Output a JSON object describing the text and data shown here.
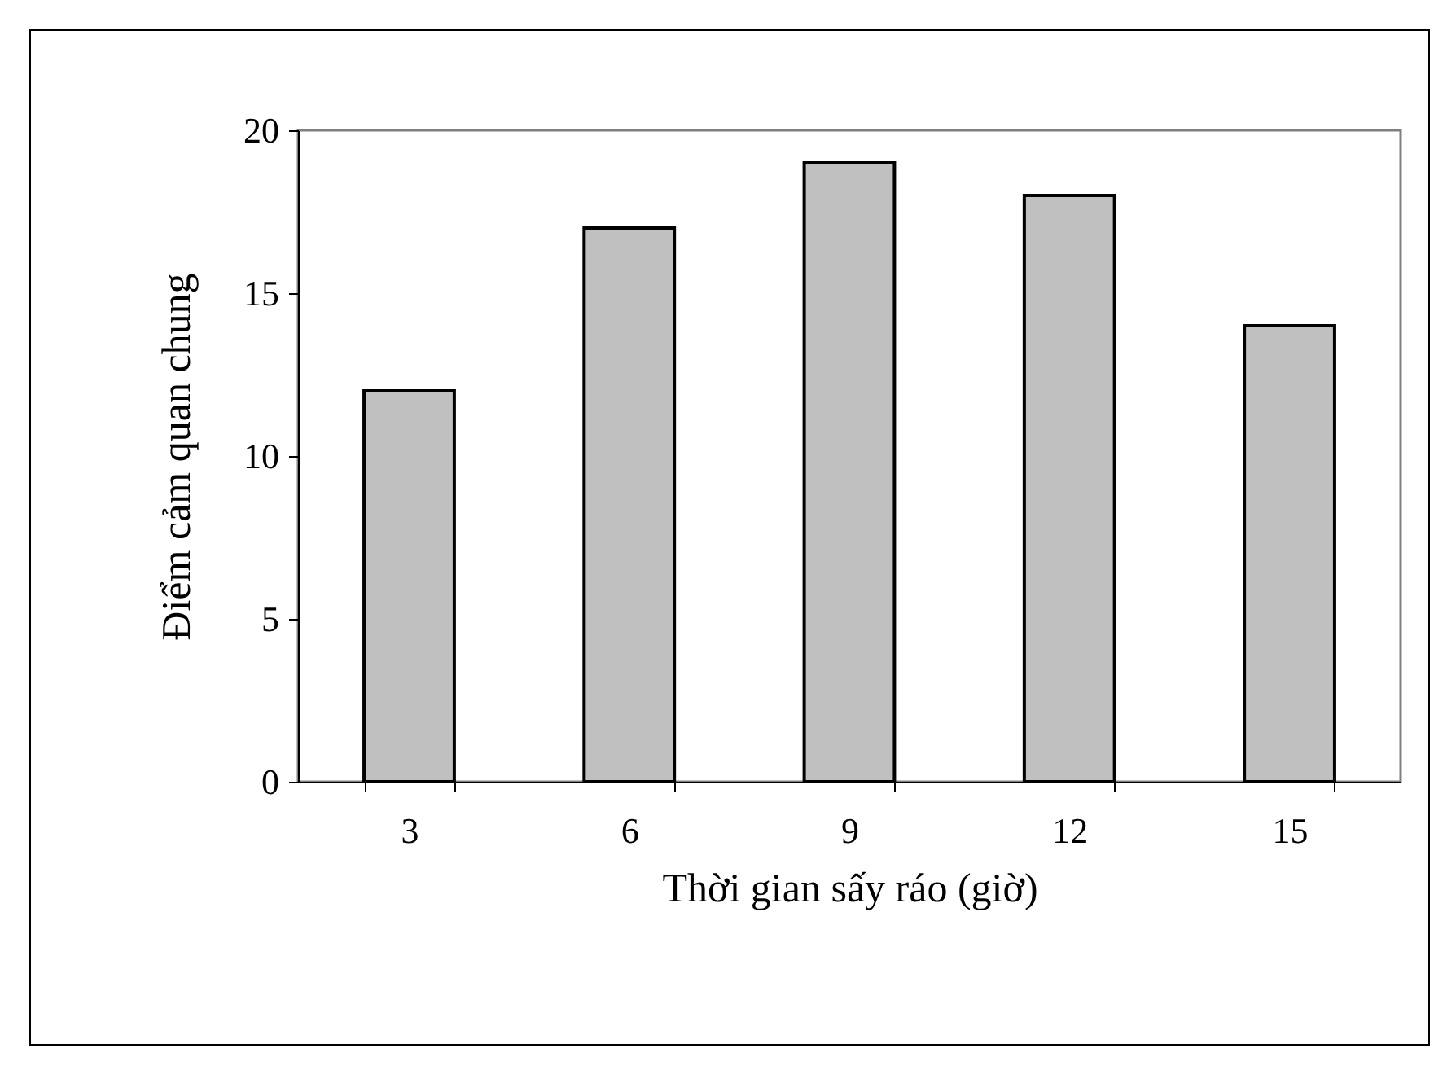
{
  "chart_data": {
    "type": "bar",
    "xlabel": "Thời gian sấy ráo (giờ)",
    "ylabel": "Điểm cảm quan chung",
    "categories": [
      "3",
      "6",
      "9",
      "12",
      "15"
    ],
    "values": [
      12,
      17,
      19,
      18,
      14
    ],
    "color": "#c0c0c0",
    "ylim": [
      0,
      20
    ],
    "yticks": [
      0,
      5,
      10,
      15,
      20
    ],
    "grid": false
  }
}
